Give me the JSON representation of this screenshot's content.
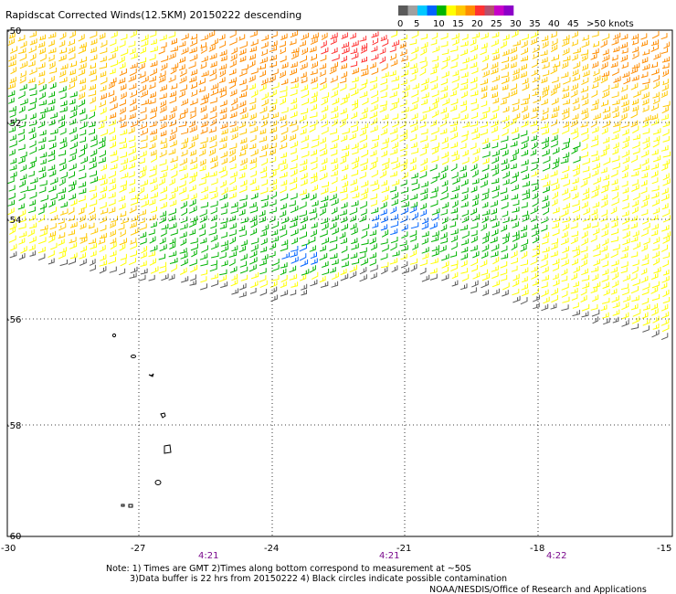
{
  "title": "Rapidscat Corrected Winds(12.5KM) 20150222 descending",
  "legend": {
    "labels": [
      "0",
      "5",
      "10",
      "15",
      "20",
      "25",
      "30",
      "35",
      "40",
      "45",
      ">50 knots"
    ],
    "colors": [
      "#5a5a5a",
      "#a0a0a0",
      "#00c8ff",
      "#0064ff",
      "#00b400",
      "#ffff00",
      "#ffc800",
      "#ff8c00",
      "#ff3232",
      "#b4506e",
      "#c800c8",
      "#8c00c8"
    ]
  },
  "axes": {
    "lat_labels": [
      "-50",
      "-52",
      "-54",
      "-56",
      "-58",
      "-60"
    ],
    "lon_labels": [
      "-30",
      "-27",
      "-24",
      "-21",
      "-18",
      "-15"
    ]
  },
  "times": [
    "4:21",
    "4:21",
    "4:22"
  ],
  "notes": {
    "line1": "Note: 1) Times are GMT 2)Times along bottom correspond to measurement at ~50S",
    "line2": "3)Data buffer is 22 hrs from 20150222 4) Black circles indicate possible contamination",
    "credit": "NOAA/NESDIS/Office of Research and Applications"
  }
}
